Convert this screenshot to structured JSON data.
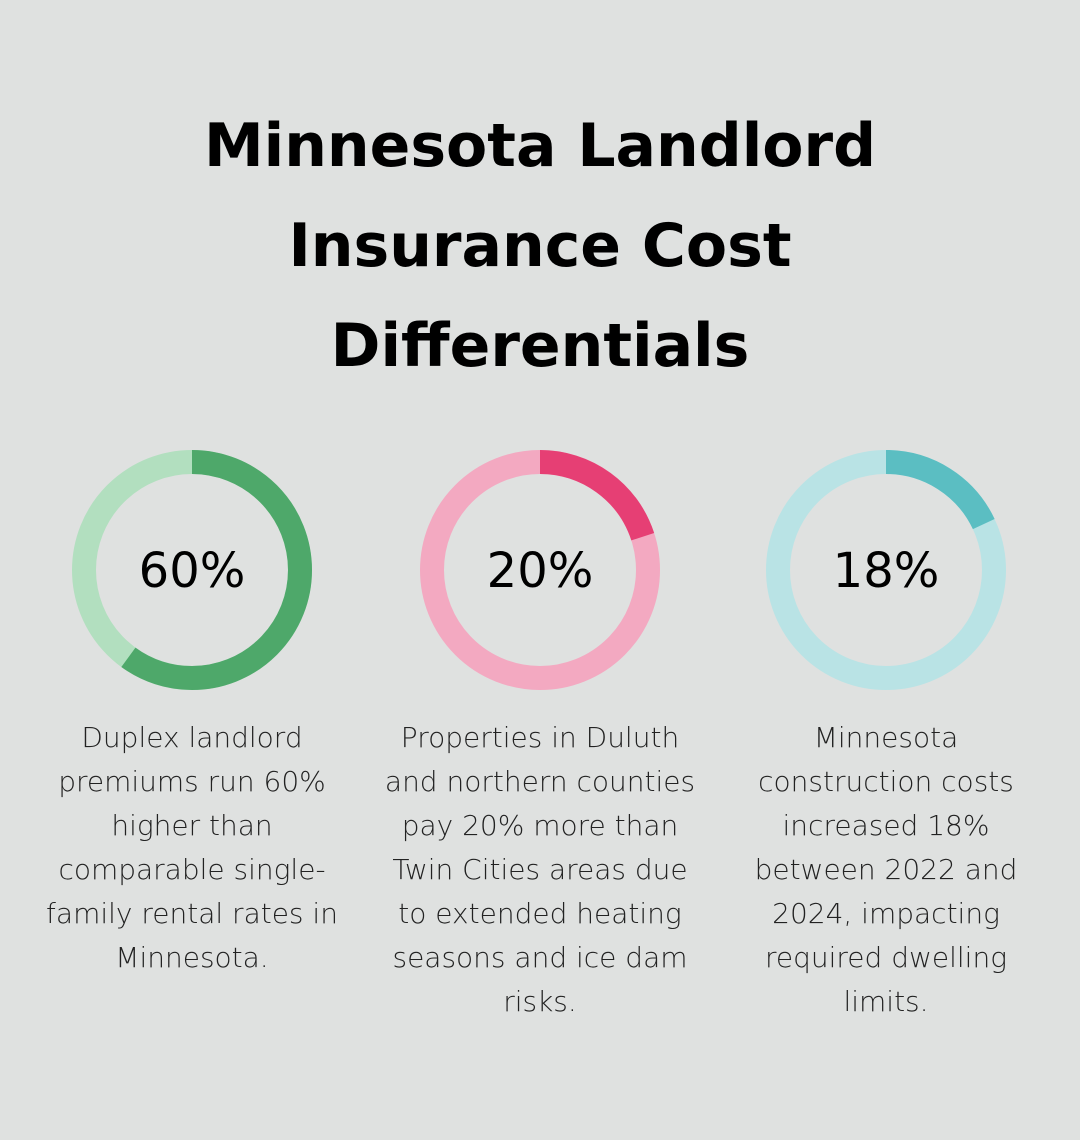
{
  "title": "Minnesota Landlord\nInsurance Cost\nDifferentials",
  "chart_data": {
    "type": "donut",
    "items": [
      {
        "value": 60,
        "label": "60%",
        "description": "Duplex landlord premiums run 60% higher than comparable single-family rental rates in Minnesota.",
        "color": "#4ea86a",
        "track_color": "#b2dfbf"
      },
      {
        "value": 20,
        "label": "20%",
        "description": "Properties in Duluth and northern counties pay 20% more than Twin Cities areas due to extended heating seasons and ice dam risks.",
        "color": "#e63f74",
        "track_color": "#f3a9c1"
      },
      {
        "value": 18,
        "label": "18%",
        "description": "Minnesota construction costs increased 18% between 2022 and 2024, impacting required dwelling limits.",
        "color": "#5bbec2",
        "track_color": "#b9e3e5"
      }
    ]
  }
}
